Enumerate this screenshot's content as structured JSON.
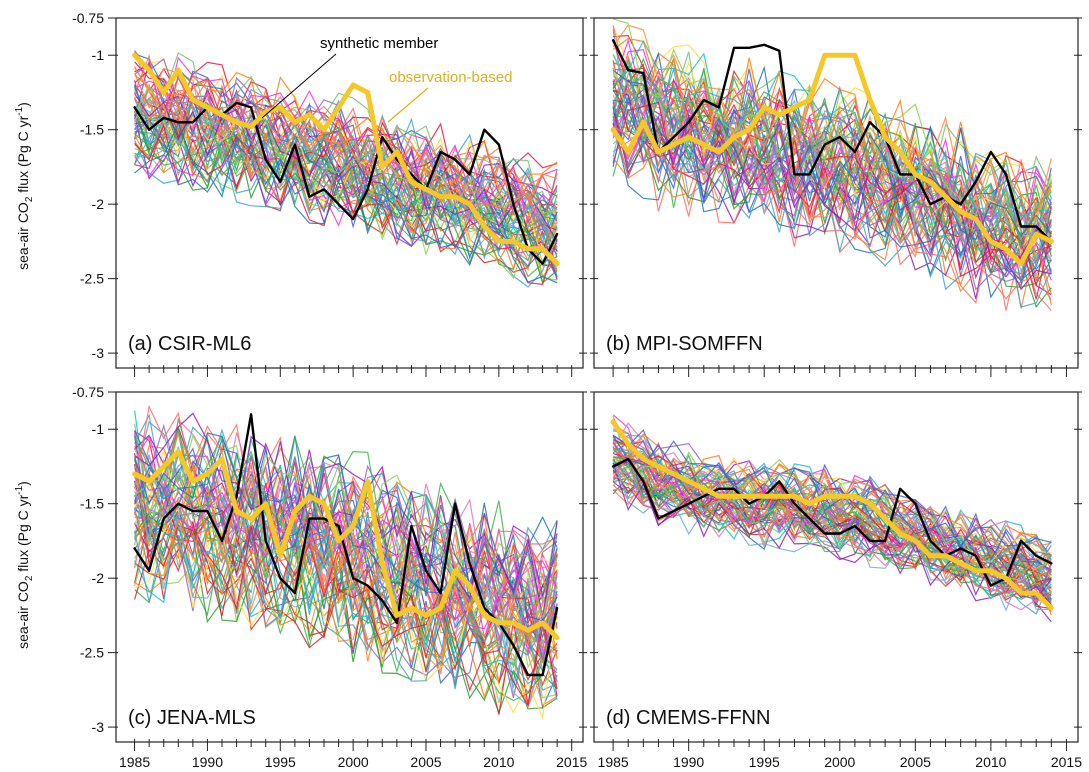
{
  "figure": {
    "ylabel_main": "sea-air CO",
    "ylabel_sub": "2",
    "ylabel_tail": " flux (Pg C yr",
    "ylabel_sup": "-1",
    "ylabel_close": ")"
  },
  "colors": {
    "observation": "#f5c82a",
    "observation_text": "#d9b21c",
    "synthetic": "#000000",
    "ensemble": [
      "#e6194b",
      "#3cb44b",
      "#4363d8",
      "#f58231",
      "#911eb4",
      "#46a3c8",
      "#f032e6",
      "#8fd14f",
      "#ff6f61",
      "#1f77b4",
      "#2ca02c",
      "#d62728",
      "#9467bd",
      "#ffdd44",
      "#17becf",
      "#e377c2",
      "#ff7f0e",
      "#6baed6",
      "#74c476",
      "#fd8d3c"
    ]
  },
  "chart_data": [
    {
      "type": "line",
      "label": "(a) CSIR-ML6",
      "xlim": [
        1984,
        2015.5
      ],
      "ylim": [
        -3.1,
        -0.75
      ],
      "xticks": [
        1985,
        1990,
        1995,
        2000,
        2005,
        2010,
        2015
      ],
      "yticks": [
        -0.75,
        -1,
        -1.5,
        -2,
        -2.5,
        -3
      ],
      "annotations": [
        {
          "text": "synthetic member",
          "color": "#000000"
        },
        {
          "text": "observation-based",
          "color": "#d9b21c"
        }
      ],
      "series": [
        {
          "name": "synthetic member",
          "x": [
            1985,
            1986,
            1987,
            1988,
            1989,
            1990,
            1991,
            1992,
            1993,
            1994,
            1995,
            1996,
            1997,
            1998,
            1999,
            2000,
            2001,
            2002,
            2003,
            2004,
            2005,
            2006,
            2007,
            2008,
            2009,
            2010,
            2011,
            2012,
            2013,
            2014
          ],
          "values": [
            -1.35,
            -1.5,
            -1.42,
            -1.45,
            -1.45,
            -1.35,
            -1.4,
            -1.32,
            -1.35,
            -1.7,
            -1.85,
            -1.6,
            -1.95,
            -1.9,
            -2.0,
            -2.1,
            -1.9,
            -1.55,
            -1.7,
            -1.8,
            -1.9,
            -1.65,
            -1.7,
            -1.8,
            -1.5,
            -1.6,
            -2.0,
            -2.3,
            -2.4,
            -2.2
          ]
        },
        {
          "name": "observation-based",
          "x": [
            1985,
            1986,
            1987,
            1988,
            1989,
            1990,
            1991,
            1992,
            1993,
            1994,
            1995,
            1996,
            1997,
            1998,
            1999,
            2000,
            2001,
            2002,
            2003,
            2004,
            2005,
            2006,
            2007,
            2008,
            2009,
            2010,
            2011,
            2012,
            2013,
            2014
          ],
          "values": [
            -1.0,
            -1.1,
            -1.25,
            -1.1,
            -1.3,
            -1.35,
            -1.4,
            -1.45,
            -1.48,
            -1.38,
            -1.35,
            -1.45,
            -1.4,
            -1.5,
            -1.35,
            -1.2,
            -1.25,
            -1.75,
            -1.65,
            -1.85,
            -1.9,
            -1.95,
            -1.95,
            -2.0,
            -2.15,
            -2.25,
            -2.25,
            -2.3,
            -2.3,
            -2.4
          ]
        }
      ],
      "ensemble_band": {
        "x": [
          1985,
          1986,
          1987,
          1988,
          1989,
          1990,
          1991,
          1992,
          1993,
          1994,
          1995,
          1996,
          1997,
          1998,
          1999,
          2000,
          2001,
          2002,
          2003,
          2004,
          2005,
          2006,
          2007,
          2008,
          2009,
          2010,
          2011,
          2012,
          2013,
          2014
        ],
        "center": [
          -1.35,
          -1.38,
          -1.4,
          -1.42,
          -1.45,
          -1.48,
          -1.5,
          -1.52,
          -1.55,
          -1.58,
          -1.6,
          -1.62,
          -1.65,
          -1.68,
          -1.7,
          -1.72,
          -1.75,
          -1.78,
          -1.8,
          -1.85,
          -1.88,
          -1.9,
          -1.92,
          -1.95,
          -1.98,
          -2.0,
          -2.05,
          -2.1,
          -2.12,
          -2.1
        ],
        "spread": 0.42
      }
    },
    {
      "type": "line",
      "label": "(b) MPI-SOMFFN",
      "xlim": [
        1984,
        2015.5
      ],
      "ylim": [
        -3.1,
        -0.75
      ],
      "xticks": [
        1985,
        1990,
        1995,
        2000,
        2005,
        2010,
        2015
      ],
      "yticks": [
        -0.75,
        -1,
        -1.5,
        -2,
        -2.5,
        -3
      ],
      "series": [
        {
          "name": "synthetic member",
          "x": [
            1985,
            1986,
            1987,
            1988,
            1989,
            1990,
            1991,
            1992,
            1993,
            1994,
            1995,
            1996,
            1997,
            1998,
            1999,
            2000,
            2001,
            2002,
            2003,
            2004,
            2005,
            2006,
            2007,
            2008,
            2009,
            2010,
            2011,
            2012,
            2013,
            2014
          ],
          "values": [
            -0.9,
            -1.1,
            -1.12,
            -1.65,
            -1.55,
            -1.45,
            -1.3,
            -1.35,
            -0.95,
            -0.95,
            -0.93,
            -0.97,
            -1.8,
            -1.8,
            -1.6,
            -1.55,
            -1.65,
            -1.45,
            -1.55,
            -1.8,
            -1.8,
            -2.0,
            -1.95,
            -2.0,
            -1.85,
            -1.65,
            -1.8,
            -2.15,
            -2.15,
            -2.25
          ]
        },
        {
          "name": "observation-based",
          "x": [
            1985,
            1986,
            1987,
            1988,
            1989,
            1990,
            1991,
            1992,
            1993,
            1994,
            1995,
            1996,
            1997,
            1998,
            1999,
            2000,
            2001,
            2002,
            2003,
            2004,
            2005,
            2006,
            2007,
            2008,
            2009,
            2010,
            2011,
            2012,
            2013,
            2014
          ],
          "values": [
            -1.5,
            -1.65,
            -1.45,
            -1.65,
            -1.6,
            -1.55,
            -1.6,
            -1.65,
            -1.55,
            -1.5,
            -1.35,
            -1.4,
            -1.35,
            -1.3,
            -1.0,
            -1.0,
            -1.0,
            -1.3,
            -1.55,
            -1.65,
            -1.8,
            -1.85,
            -1.95,
            -2.05,
            -2.1,
            -2.25,
            -2.3,
            -2.4,
            -2.2,
            -2.25
          ]
        }
      ],
      "ensemble_band": {
        "x": [
          1985,
          1986,
          1987,
          1988,
          1989,
          1990,
          1991,
          1992,
          1993,
          1994,
          1995,
          1996,
          1997,
          1998,
          1999,
          2000,
          2001,
          2002,
          2003,
          2004,
          2005,
          2006,
          2007,
          2008,
          2009,
          2010,
          2011,
          2012,
          2013,
          2014
        ],
        "center": [
          -1.3,
          -1.35,
          -1.4,
          -1.45,
          -1.5,
          -1.5,
          -1.55,
          -1.55,
          -1.6,
          -1.6,
          -1.62,
          -1.65,
          -1.7,
          -1.72,
          -1.75,
          -1.75,
          -1.78,
          -1.8,
          -1.85,
          -1.88,
          -1.9,
          -1.95,
          -2.0,
          -2.05,
          -2.1,
          -2.12,
          -2.15,
          -2.2,
          -2.2,
          -2.15
        ],
        "spread": 0.55
      }
    },
    {
      "type": "line",
      "label": "(c) JENA-MLS",
      "xlim": [
        1984,
        2015.5
      ],
      "ylim": [
        -3.1,
        -0.75
      ],
      "xticks": [
        1985,
        1990,
        1995,
        2000,
        2005,
        2010,
        2015
      ],
      "yticks": [
        -0.75,
        -1,
        -1.5,
        -2,
        -2.5,
        -3
      ],
      "series": [
        {
          "name": "synthetic member",
          "x": [
            1985,
            1986,
            1987,
            1988,
            1989,
            1990,
            1991,
            1992,
            1993,
            1994,
            1995,
            1996,
            1997,
            1998,
            1999,
            2000,
            2001,
            2002,
            2003,
            2004,
            2005,
            2006,
            2007,
            2008,
            2009,
            2010,
            2011,
            2012,
            2013,
            2014
          ],
          "values": [
            -1.8,
            -1.95,
            -1.6,
            -1.5,
            -1.55,
            -1.55,
            -1.75,
            -1.45,
            -0.9,
            -1.75,
            -2.0,
            -2.1,
            -1.6,
            -1.6,
            -1.65,
            -2.0,
            -2.05,
            -2.15,
            -2.3,
            -1.65,
            -1.95,
            -2.1,
            -1.5,
            -1.9,
            -2.2,
            -2.3,
            -2.45,
            -2.65,
            -2.65,
            -2.2
          ]
        },
        {
          "name": "observation-based",
          "x": [
            1985,
            1986,
            1987,
            1988,
            1989,
            1990,
            1991,
            1992,
            1993,
            1994,
            1995,
            1996,
            1997,
            1998,
            1999,
            2000,
            2001,
            2002,
            2003,
            2004,
            2005,
            2006,
            2007,
            2008,
            2009,
            2010,
            2011,
            2012,
            2013,
            2014
          ],
          "values": [
            -1.3,
            -1.35,
            -1.25,
            -1.15,
            -1.35,
            -1.3,
            -1.2,
            -1.55,
            -1.6,
            -1.5,
            -1.85,
            -1.55,
            -1.45,
            -1.5,
            -1.75,
            -1.65,
            -1.35,
            -1.9,
            -2.25,
            -2.2,
            -2.25,
            -2.2,
            -1.95,
            -2.05,
            -2.25,
            -2.3,
            -2.3,
            -2.35,
            -2.3,
            -2.4
          ]
        }
      ],
      "ensemble_band": {
        "x": [
          1985,
          1986,
          1987,
          1988,
          1989,
          1990,
          1991,
          1992,
          1993,
          1994,
          1995,
          1996,
          1997,
          1998,
          1999,
          2000,
          2001,
          2002,
          2003,
          2004,
          2005,
          2006,
          2007,
          2008,
          2009,
          2010,
          2011,
          2012,
          2013,
          2014
        ],
        "center": [
          -1.45,
          -1.48,
          -1.5,
          -1.52,
          -1.55,
          -1.58,
          -1.6,
          -1.62,
          -1.65,
          -1.68,
          -1.7,
          -1.72,
          -1.75,
          -1.78,
          -1.8,
          -1.85,
          -1.88,
          -1.9,
          -1.95,
          -2.0,
          -2.02,
          -2.05,
          -2.08,
          -2.1,
          -2.15,
          -2.2,
          -2.22,
          -2.25,
          -2.25,
          -2.2
        ],
        "spread": 0.65
      }
    },
    {
      "type": "line",
      "label": "(d) CMEMS-FFNN",
      "xlim": [
        1984,
        2015.5
      ],
      "ylim": [
        -3.1,
        -0.75
      ],
      "xticks": [
        1985,
        1990,
        1995,
        2000,
        2005,
        2010,
        2015
      ],
      "yticks": [
        -0.75,
        -1,
        -1.5,
        -2,
        -2.5,
        -3
      ],
      "series": [
        {
          "name": "synthetic member",
          "x": [
            1985,
            1986,
            1987,
            1988,
            1989,
            1990,
            1991,
            1992,
            1993,
            1994,
            1995,
            1996,
            1997,
            1998,
            1999,
            2000,
            2001,
            2002,
            2003,
            2004,
            2005,
            2006,
            2007,
            2008,
            2009,
            2010,
            2011,
            2012,
            2013,
            2014
          ],
          "values": [
            -1.25,
            -1.2,
            -1.35,
            -1.6,
            -1.55,
            -1.5,
            -1.45,
            -1.4,
            -1.4,
            -1.5,
            -1.45,
            -1.35,
            -1.5,
            -1.6,
            -1.7,
            -1.7,
            -1.65,
            -1.75,
            -1.75,
            -1.4,
            -1.5,
            -1.75,
            -1.85,
            -1.8,
            -1.85,
            -2.05,
            -2.0,
            -1.75,
            -1.85,
            -1.9
          ]
        },
        {
          "name": "observation-based",
          "x": [
            1985,
            1986,
            1987,
            1988,
            1989,
            1990,
            1991,
            1992,
            1993,
            1994,
            1995,
            1996,
            1997,
            1998,
            1999,
            2000,
            2001,
            2002,
            2003,
            2004,
            2005,
            2006,
            2007,
            2008,
            2009,
            2010,
            2011,
            2012,
            2013,
            2014
          ],
          "values": [
            -0.95,
            -1.1,
            -1.2,
            -1.25,
            -1.3,
            -1.35,
            -1.4,
            -1.45,
            -1.45,
            -1.45,
            -1.45,
            -1.45,
            -1.45,
            -1.5,
            -1.45,
            -1.45,
            -1.45,
            -1.5,
            -1.6,
            -1.7,
            -1.75,
            -1.85,
            -1.85,
            -1.9,
            -1.95,
            -1.95,
            -2.0,
            -2.1,
            -2.1,
            -2.2
          ]
        }
      ],
      "ensemble_band": {
        "x": [
          1985,
          1986,
          1987,
          1988,
          1989,
          1990,
          1991,
          1992,
          1993,
          1994,
          1995,
          1996,
          1997,
          1998,
          1999,
          2000,
          2001,
          2002,
          2003,
          2004,
          2005,
          2006,
          2007,
          2008,
          2009,
          2010,
          2011,
          2012,
          2013,
          2014
        ],
        "center": [
          -1.2,
          -1.25,
          -1.3,
          -1.35,
          -1.38,
          -1.4,
          -1.42,
          -1.45,
          -1.45,
          -1.48,
          -1.5,
          -1.5,
          -1.52,
          -1.55,
          -1.55,
          -1.58,
          -1.6,
          -1.62,
          -1.65,
          -1.7,
          -1.72,
          -1.75,
          -1.8,
          -1.82,
          -1.85,
          -1.9,
          -1.92,
          -1.95,
          -1.98,
          -2.0
        ],
        "spread": 0.28
      }
    }
  ]
}
